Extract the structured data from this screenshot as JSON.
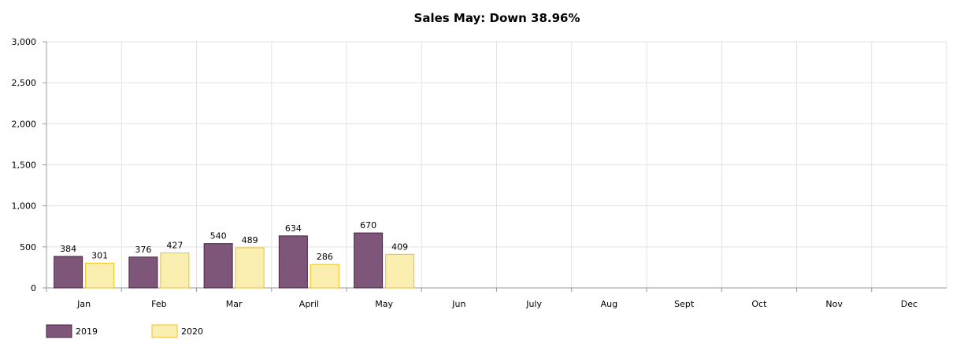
{
  "chart_data": {
    "type": "bar",
    "title": "Sales May: Down 38.96%",
    "xlabel": "",
    "ylabel": "",
    "categories": [
      "Jan",
      "Feb",
      "Mar",
      "April",
      "May",
      "Jun",
      "July",
      "Aug",
      "Sept",
      "Oct",
      "Nov",
      "Dec"
    ],
    "series": [
      {
        "name": "2019",
        "values": [
          384,
          376,
          540,
          634,
          670,
          null,
          null,
          null,
          null,
          null,
          null,
          null
        ],
        "color": "#7d5679",
        "border": "#4a2446"
      },
      {
        "name": "2020",
        "values": [
          301,
          427,
          489,
          286,
          409,
          null,
          null,
          null,
          null,
          null,
          null,
          null
        ],
        "color": "#faeeb1",
        "border": "#f0c419"
      }
    ],
    "ylim": [
      0,
      3000
    ],
    "yticks": [
      0,
      500,
      1000,
      1500,
      2000,
      2500,
      3000
    ],
    "ytick_labels": [
      "0",
      "500",
      "1,000",
      "1,500",
      "2,000",
      "2,500",
      "3,000"
    ],
    "grid": true,
    "legend_position": "bottom-left",
    "data_labels": true
  }
}
